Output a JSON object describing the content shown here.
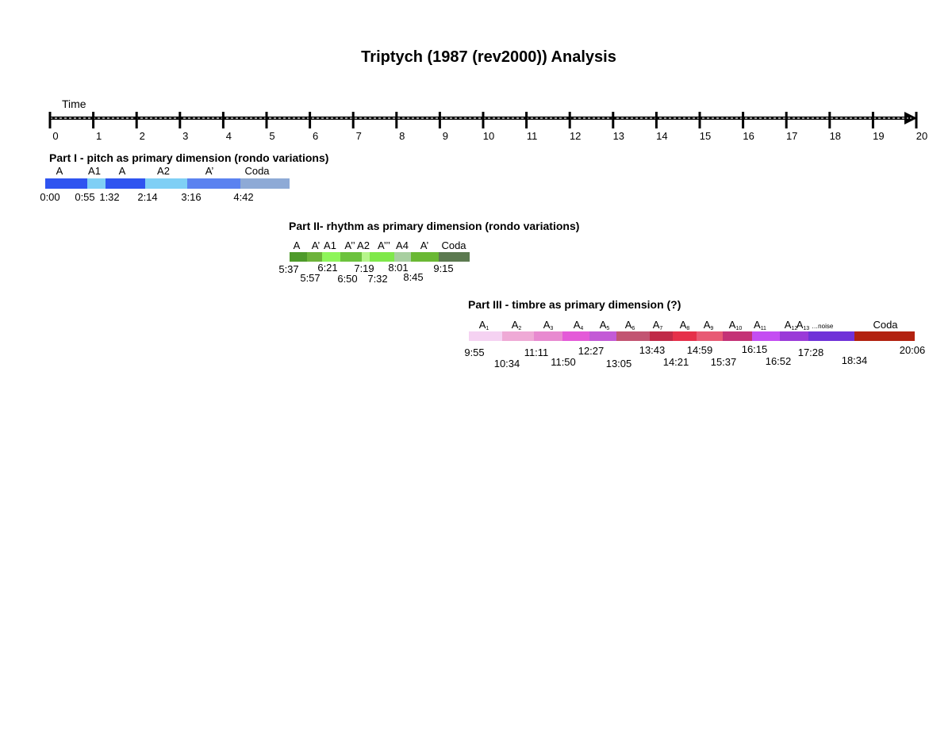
{
  "title": "Triptych (1987 (rev2000)) Analysis",
  "timeline": {
    "label": "Time",
    "ticks": [
      "0",
      "1",
      "2",
      "3",
      "4",
      "5",
      "6",
      "7",
      "8",
      "9",
      "10",
      "11",
      "12",
      "13",
      "14",
      "15",
      "16",
      "17",
      "18",
      "19",
      "20"
    ]
  },
  "parts": [
    {
      "title": "Part I - pitch as primary dimension (rondo variations)",
      "sections": [
        {
          "label": "A",
          "color": "#2f54f0"
        },
        {
          "label": "A1",
          "color": "#7fcff5"
        },
        {
          "label": "A",
          "color": "#2f54f0"
        },
        {
          "label": "A2",
          "color": "#7fcff5"
        },
        {
          "label": "A’",
          "color": "#5b82f0"
        },
        {
          "label": "Coda",
          "color": "#8eaad6"
        }
      ],
      "times": [
        "0:00",
        "0:55",
        "1:32",
        "2:14",
        "3:16",
        "4:42"
      ]
    },
    {
      "title": "Part II- rhythm as primary dimension (rondo variations)",
      "sections": [
        {
          "label": "A",
          "color": "#4e9a2a"
        },
        {
          "label": "A’",
          "color": "#6db33a"
        },
        {
          "label": "A1",
          "color": "#8ef55a"
        },
        {
          "label": "A’’",
          "color": "#6cc23d"
        },
        {
          "label": "A2",
          "color": "#b6f58a"
        },
        {
          "label": "A’’’",
          "color": "#7fe84a"
        },
        {
          "label": "A4",
          "color": "#a8cfa0"
        },
        {
          "label": "A’",
          "color": "#6ab834"
        },
        {
          "label": "Coda",
          "color": "#5c7a50"
        }
      ],
      "times": [
        "5:37",
        "5:57",
        "6:21",
        "6:50",
        "7:19",
        "7:32",
        "8:01",
        "8:45",
        "9:15"
      ]
    },
    {
      "title": "Part III - timbre as primary dimension (?)",
      "sections": [
        {
          "label": "A",
          "sub": "1",
          "color": "#f5d2f2"
        },
        {
          "label": "A",
          "sub": "2",
          "color": "#efaad6"
        },
        {
          "label": "A",
          "sub": "3",
          "color": "#e88ad0"
        },
        {
          "label": "A",
          "sub": "4",
          "color": "#e45ad8"
        },
        {
          "label": "A",
          "sub": "5",
          "color": "#c35ad6"
        },
        {
          "label": "A",
          "sub": "6",
          "color": "#c25472"
        },
        {
          "label": "A",
          "sub": "7",
          "color": "#c02a48"
        },
        {
          "label": "A",
          "sub": "8",
          "color": "#e6304a"
        },
        {
          "label": "A",
          "sub": "9",
          "color": "#e85a74"
        },
        {
          "label": "A",
          "sub": "10",
          "color": "#c43276"
        },
        {
          "label": "A",
          "sub": "11",
          "color": "#c44ef2"
        },
        {
          "label": "A",
          "sub": "12",
          "color": "#9a3ad8"
        },
        {
          "label": "A",
          "sub": "13",
          "extra": "…noise",
          "color": "#7032d8"
        },
        {
          "label": "Coda",
          "color": "#b22210"
        }
      ],
      "times": [
        "9:55",
        "10:34",
        "11:11",
        "11:50",
        "12:27",
        "13:05",
        "13:43",
        "14:21",
        "14:59",
        "15:37",
        "16:15",
        "16:52",
        "17:28",
        "18:34",
        "20:06"
      ]
    }
  ]
}
